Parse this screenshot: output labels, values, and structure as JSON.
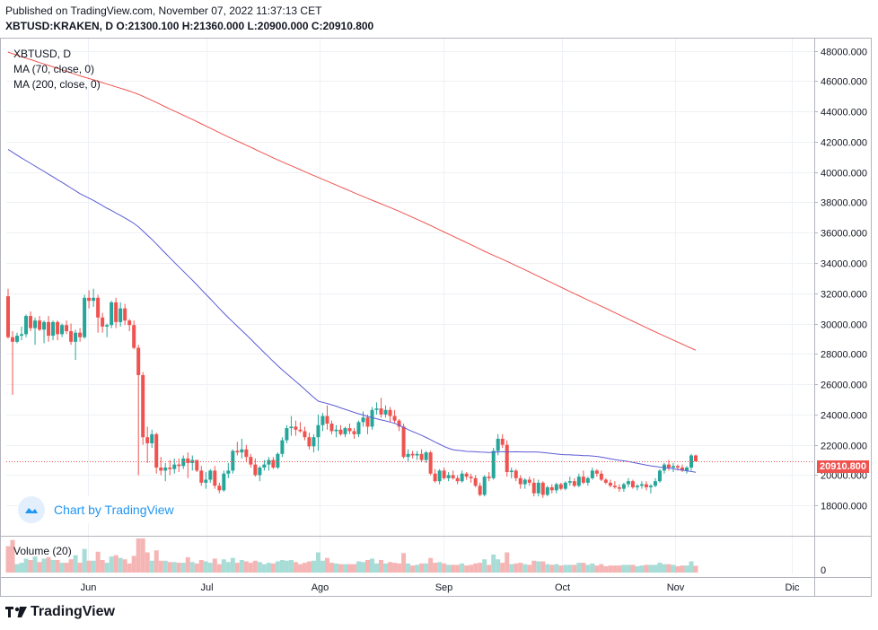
{
  "header": {
    "published": "Published on TradingView.com, November 07, 2022 11:37:13 CET",
    "symbol": "XBTUSD:KRAKEN, D",
    "ohlc": "O:21300.100 H:21360.000 L:20900.000 C:20910.800"
  },
  "legend": {
    "symbol": "XBTUSD, D",
    "ma70": "MA (70, close, 0)",
    "ma200": "MA (200, close, 0)"
  },
  "watermark": "Chart by TradingView",
  "volume_label": "Volume (20)",
  "footer_brand": "TradingView",
  "last_price_label": "20910.800",
  "colors": {
    "up": "#26a69a",
    "down": "#ef5350",
    "ma70": "#5b5bd6",
    "ma200": "#ef5350",
    "grid": "#eef1f5",
    "accent": "#2196f3"
  },
  "chart_data": {
    "type": "candlestick",
    "price_axis": {
      "ticks": [
        "48000.000",
        "46000.000",
        "44000.000",
        "42000.000",
        "40000.000",
        "38000.000",
        "36000.000",
        "34000.000",
        "32000.000",
        "30000.000",
        "28000.000",
        "26000.000",
        "24000.000",
        "22000.000",
        "20000.000",
        "18000.000"
      ],
      "range": [
        16000,
        48800
      ]
    },
    "time_axis": {
      "ticks": [
        "Jun",
        "Jul",
        "Ago",
        "Sep",
        "Oct",
        "Nov",
        "Dic"
      ]
    },
    "volume_axis": {
      "ticks": [
        "0"
      ]
    },
    "last_price": 20910.8,
    "candles": [
      [
        31800,
        32300,
        29000,
        29100
      ],
      [
        29100,
        29500,
        25300,
        28800
      ],
      [
        28800,
        29400,
        28700,
        29200
      ],
      [
        29200,
        29800,
        28900,
        29300
      ],
      [
        29300,
        30600,
        29100,
        30500
      ],
      [
        30500,
        30800,
        29500,
        29700
      ],
      [
        29700,
        30400,
        28600,
        30200
      ],
      [
        30200,
        30500,
        29500,
        29600
      ],
      [
        29600,
        30200,
        28700,
        30100
      ],
      [
        30100,
        30500,
        28800,
        29200
      ],
      [
        29200,
        30200,
        28900,
        30100
      ],
      [
        30100,
        30200,
        28900,
        29300
      ],
      [
        29300,
        30000,
        29100,
        29900
      ],
      [
        29900,
        30200,
        29300,
        29500
      ],
      [
        29500,
        30000,
        28600,
        28800
      ],
      [
        28800,
        29600,
        27600,
        29400
      ],
      [
        29400,
        29700,
        28800,
        29100
      ],
      [
        29100,
        31900,
        29000,
        31700
      ],
      [
        31700,
        32200,
        31000,
        31500
      ],
      [
        31500,
        32300,
        31100,
        31700
      ],
      [
        31700,
        31900,
        29400,
        30400
      ],
      [
        30400,
        30700,
        29400,
        29800
      ],
      [
        29800,
        30000,
        29100,
        29900
      ],
      [
        29900,
        31500,
        29700,
        31400
      ],
      [
        31400,
        31700,
        29700,
        30100
      ],
      [
        30100,
        31400,
        29800,
        31000
      ],
      [
        31000,
        31300,
        29900,
        30200
      ],
      [
        30200,
        30300,
        29500,
        29900
      ],
      [
        29900,
        30200,
        28300,
        28400
      ],
      [
        28400,
        28600,
        20000,
        26600
      ],
      [
        26600,
        26800,
        22000,
        22500
      ],
      [
        22500,
        23200,
        20800,
        22100
      ],
      [
        22100,
        23000,
        21800,
        22700
      ],
      [
        22700,
        22800,
        20100,
        20500
      ],
      [
        20500,
        21200,
        20000,
        20300
      ],
      [
        20300,
        20800,
        19600,
        20500
      ],
      [
        20500,
        21000,
        20000,
        20400
      ],
      [
        20400,
        21100,
        20100,
        20700
      ],
      [
        20700,
        21100,
        20200,
        20600
      ],
      [
        20600,
        21300,
        20400,
        21100
      ],
      [
        21100,
        21500,
        19800,
        20800
      ],
      [
        20800,
        21300,
        20300,
        21000
      ],
      [
        21000,
        21000,
        20200,
        20300
      ],
      [
        20300,
        20600,
        19300,
        19500
      ],
      [
        19500,
        20200,
        19100,
        19700
      ],
      [
        19700,
        20400,
        19500,
        20300
      ],
      [
        20300,
        20600,
        19100,
        19300
      ],
      [
        19300,
        19500,
        18800,
        19000
      ],
      [
        19000,
        20300,
        18900,
        20100
      ],
      [
        20100,
        20800,
        19800,
        20300
      ],
      [
        20300,
        21700,
        20100,
        21600
      ],
      [
        21600,
        22200,
        21300,
        21500
      ],
      [
        21500,
        22400,
        21100,
        21700
      ],
      [
        21700,
        22000,
        20900,
        21200
      ],
      [
        21200,
        21400,
        20500,
        20700
      ],
      [
        20700,
        21100,
        19900,
        20000
      ],
      [
        20000,
        20600,
        19600,
        20500
      ],
      [
        20500,
        21000,
        20300,
        20700
      ],
      [
        20700,
        21200,
        20300,
        21000
      ],
      [
        21000,
        21200,
        20400,
        20500
      ],
      [
        20500,
        21500,
        20400,
        21400
      ],
      [
        21400,
        22500,
        21200,
        22300
      ],
      [
        22300,
        23300,
        22100,
        23100
      ],
      [
        23100,
        23900,
        22600,
        23200
      ],
      [
        23200,
        23600,
        22600,
        23000
      ],
      [
        23000,
        23500,
        22800,
        22900
      ],
      [
        22900,
        23200,
        22300,
        22500
      ],
      [
        22500,
        22800,
        21700,
        21900
      ],
      [
        21900,
        22700,
        21500,
        22500
      ],
      [
        22500,
        24000,
        21600,
        23300
      ],
      [
        23300,
        24100,
        22900,
        23900
      ],
      [
        23900,
        24600,
        23000,
        23400
      ],
      [
        23400,
        23600,
        22700,
        22900
      ],
      [
        22900,
        23300,
        22500,
        23000
      ],
      [
        23000,
        23300,
        22600,
        22700
      ],
      [
        22700,
        23200,
        22500,
        23100
      ],
      [
        23100,
        23400,
        22700,
        22900
      ],
      [
        22900,
        23100,
        22400,
        22700
      ],
      [
        22700,
        23600,
        22500,
        23500
      ],
      [
        23500,
        24200,
        23200,
        23800
      ],
      [
        23800,
        24000,
        22700,
        23200
      ],
      [
        23200,
        24500,
        23000,
        24300
      ],
      [
        24300,
        24800,
        24000,
        24400
      ],
      [
        24400,
        25100,
        23800,
        24000
      ],
      [
        24000,
        24600,
        23800,
        24300
      ],
      [
        24300,
        24500,
        23500,
        23900
      ],
      [
        23900,
        24300,
        23400,
        23600
      ],
      [
        23600,
        23700,
        22900,
        23200
      ],
      [
        23200,
        23400,
        21100,
        21200
      ],
      [
        21200,
        21700,
        20900,
        21400
      ],
      [
        21400,
        21600,
        21100,
        21300
      ],
      [
        21300,
        21600,
        21000,
        21400
      ],
      [
        21400,
        21700,
        20900,
        21000
      ],
      [
        21000,
        21600,
        20800,
        21500
      ],
      [
        21500,
        21600,
        20000,
        20100
      ],
      [
        20100,
        20400,
        19500,
        19600
      ],
      [
        19600,
        20400,
        19400,
        20300
      ],
      [
        20300,
        20500,
        19700,
        19800
      ],
      [
        19800,
        20200,
        19600,
        20000
      ],
      [
        20000,
        20300,
        19700,
        19800
      ],
      [
        19800,
        20000,
        19400,
        19600
      ],
      [
        19600,
        20300,
        19500,
        20100
      ],
      [
        20100,
        20200,
        19700,
        19900
      ],
      [
        19900,
        20100,
        19500,
        19800
      ],
      [
        19800,
        20000,
        19200,
        19300
      ],
      [
        19300,
        19500,
        18600,
        18700
      ],
      [
        18700,
        20000,
        18600,
        19900
      ],
      [
        19900,
        20200,
        19600,
        19800
      ],
      [
        19800,
        21800,
        19700,
        21600
      ],
      [
        21600,
        22700,
        21300,
        22400
      ],
      [
        22400,
        22700,
        21800,
        22000
      ],
      [
        22000,
        22300,
        19900,
        20200
      ],
      [
        20200,
        20500,
        19800,
        20300
      ],
      [
        20300,
        20400,
        19600,
        19800
      ],
      [
        19800,
        20000,
        19100,
        19400
      ],
      [
        19400,
        19800,
        19100,
        19700
      ],
      [
        19700,
        19900,
        19300,
        19500
      ],
      [
        19500,
        19800,
        18600,
        18800
      ],
      [
        18800,
        19700,
        18600,
        19500
      ],
      [
        19500,
        19600,
        18500,
        18700
      ],
      [
        18700,
        19300,
        18600,
        19200
      ],
      [
        19200,
        19400,
        18800,
        19000
      ],
      [
        19000,
        19500,
        18800,
        19400
      ],
      [
        19400,
        19500,
        19000,
        19100
      ],
      [
        19100,
        19600,
        19000,
        19500
      ],
      [
        19500,
        19900,
        19300,
        19600
      ],
      [
        19600,
        19800,
        19200,
        19300
      ],
      [
        19300,
        20100,
        19200,
        19900
      ],
      [
        19900,
        20300,
        19400,
        19500
      ],
      [
        19500,
        19900,
        19300,
        19800
      ],
      [
        19800,
        20500,
        19700,
        20300
      ],
      [
        20300,
        20400,
        19900,
        20100
      ],
      [
        20100,
        20300,
        19600,
        19700
      ],
      [
        19700,
        19800,
        19400,
        19500
      ],
      [
        19500,
        19700,
        19200,
        19300
      ],
      [
        19300,
        19600,
        19100,
        19200
      ],
      [
        19200,
        19400,
        18900,
        19100
      ],
      [
        19100,
        19500,
        18900,
        19400
      ],
      [
        19400,
        19800,
        19200,
        19600
      ],
      [
        19600,
        19700,
        19100,
        19200
      ],
      [
        19200,
        19400,
        19000,
        19300
      ],
      [
        19300,
        19600,
        19100,
        19400
      ],
      [
        19400,
        19600,
        19000,
        19200
      ],
      [
        19200,
        19400,
        18800,
        19300
      ],
      [
        19300,
        19800,
        19200,
        19600
      ],
      [
        19600,
        20400,
        19500,
        20300
      ],
      [
        20300,
        20800,
        20100,
        20700
      ],
      [
        20700,
        21000,
        20300,
        20500
      ],
      [
        20500,
        20800,
        20200,
        20600
      ],
      [
        20600,
        20700,
        20300,
        20500
      ],
      [
        20500,
        20700,
        20200,
        20300
      ],
      [
        20300,
        20600,
        20100,
        20500
      ],
      [
        20500,
        21400,
        20300,
        21300
      ],
      [
        21300,
        21360,
        20900,
        20910.8
      ]
    ],
    "ma70_start": 40800,
    "ma200_start": 46800
  }
}
